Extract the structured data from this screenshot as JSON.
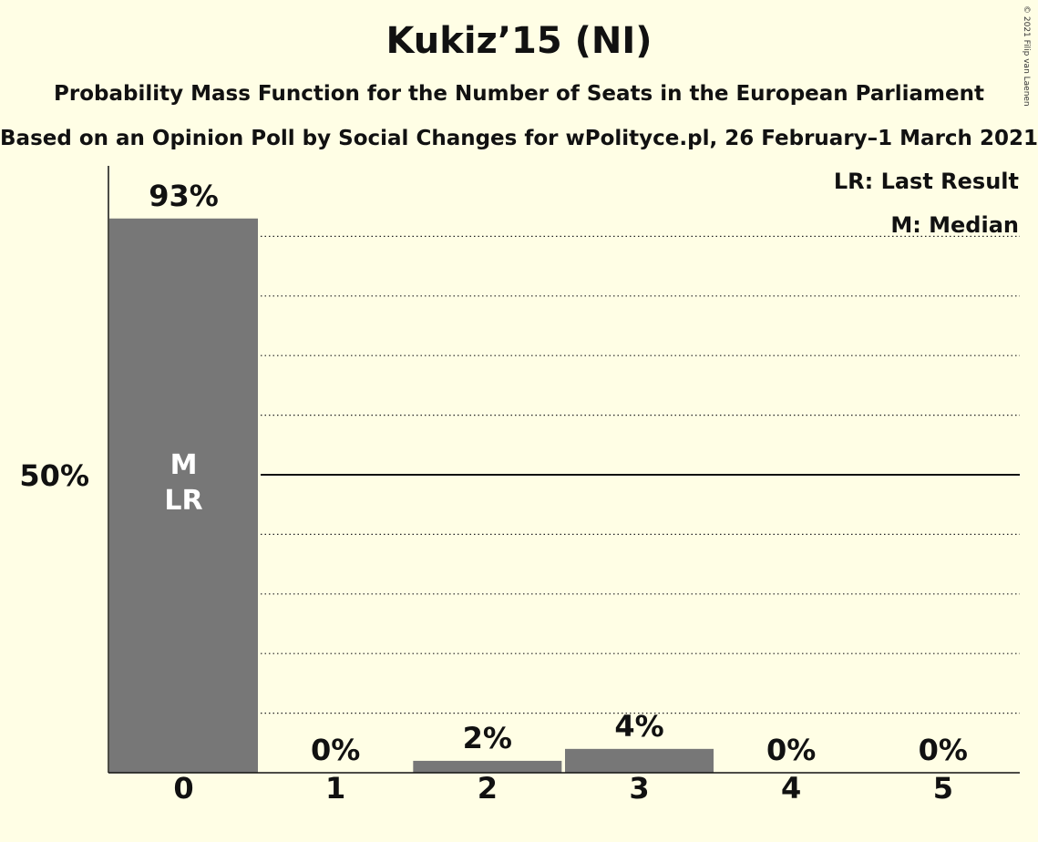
{
  "chart_data": {
    "type": "bar",
    "title": "Kukiz’15 (NI)",
    "subtitle": "Probability Mass Function for the Number of Seats in the European Parliament",
    "source": "Based on an Opinion Poll by Social Changes for wPolityce.pl, 26 February–1 March 2021",
    "categories": [
      "0",
      "1",
      "2",
      "3",
      "4",
      "5"
    ],
    "values": [
      93,
      0,
      2,
      4,
      0,
      0
    ],
    "value_labels": [
      "93%",
      "0%",
      "2%",
      "4%",
      "0%",
      "0%"
    ],
    "ytick_label": "50%",
    "ylim": [
      0,
      100
    ],
    "grid": true,
    "bar_color": "#777777",
    "background": "#FFFEE5",
    "markers": [
      {
        "category": "0",
        "lines": [
          "M",
          "LR"
        ]
      }
    ],
    "legend": [
      "LR: Last Result",
      "M: Median"
    ],
    "legend_position": "top-right",
    "copyright": "© 2021 Filip van Laenen"
  }
}
